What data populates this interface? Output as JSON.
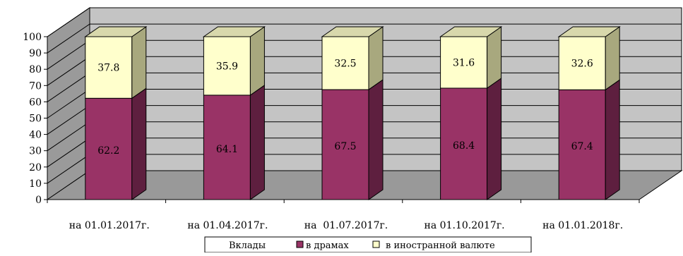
{
  "chart_data": {
    "type": "bar",
    "stacked": true,
    "three_d": true,
    "categories": [
      "на 01.01.2017г.",
      "на 01.04.2017г.",
      "на  01.07.2017г.",
      "на 01.10.2017г.",
      "на 01.01.2018г."
    ],
    "series": [
      {
        "name": "в драмах",
        "values": [
          62.2,
          64.1,
          67.5,
          68.4,
          67.4
        ],
        "color": "#993366"
      },
      {
        "name": "в иностранной валюте",
        "values": [
          37.8,
          35.9,
          32.5,
          31.6,
          32.6
        ],
        "color": "#FFFFCC"
      }
    ],
    "data_labels": [
      [
        "62.2",
        "64.1",
        "67.5",
        "68.4",
        "67.4"
      ],
      [
        "37.8",
        "35.9",
        "32.5",
        "31.6",
        "32.6"
      ]
    ],
    "yticks": [
      "0",
      "10",
      "20",
      "30",
      "40",
      "50",
      "60",
      "70",
      "80",
      "90",
      "100"
    ],
    "ylim": [
      0,
      100
    ],
    "grid": true,
    "legend": {
      "title": "Вклады",
      "placement": "bottom"
    },
    "title": "",
    "xlabel": "",
    "ylabel": ""
  }
}
